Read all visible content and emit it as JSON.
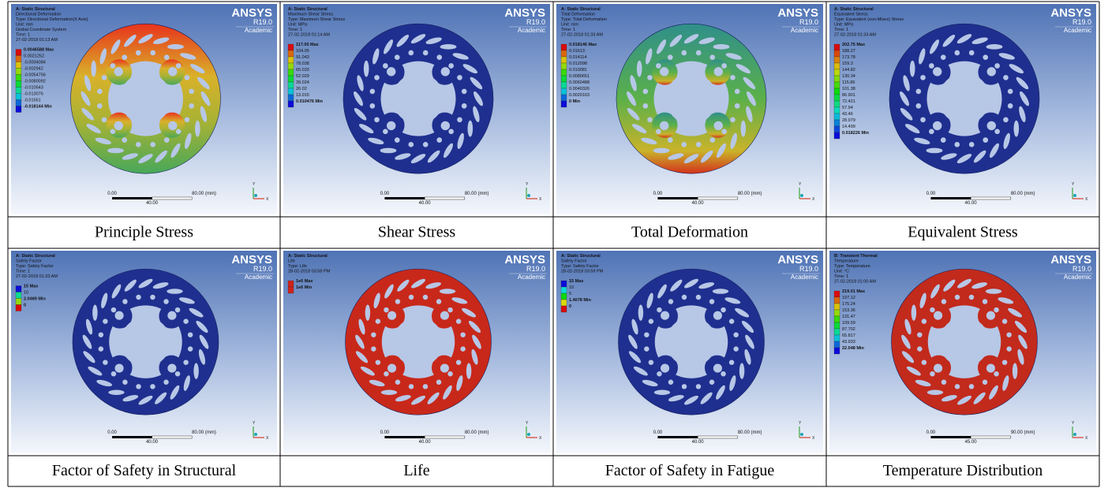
{
  "panels": [
    {
      "header": [
        "A: Static Structural",
        "Directional Deformation",
        "Type: Directional Deformation(X Axis)",
        "Unit: mm",
        "Global Coordinate System",
        "Time: 1",
        "27-02-2018 01:13 AM"
      ],
      "legend": [
        "0.0046588 Max",
        "0.0021252",
        "-0.0004084",
        "-0.002942",
        "-0.0054756",
        "-0.0080092",
        "-0.010543",
        "-0.013076",
        "-0.01561",
        "-0.018144 Min"
      ],
      "scale": {
        "start": "0.00",
        "end": "80.00 (mm)",
        "mid": "40.00"
      },
      "caption": "Principle Stress"
    },
    {
      "header": [
        "A: Static Structural",
        "Maximum Shear Stress",
        "Type: Maximum Shear Stress",
        "Unit: MPa",
        "Time: 1",
        "27-02-2018 01:14 AM"
      ],
      "legend": [
        "117.05 Max",
        "104.05",
        "91.043",
        "78.038",
        "65.033",
        "52.029",
        "39.024",
        "26.02",
        "13.015",
        "0.010476 Min"
      ],
      "scale": {
        "start": "0.00",
        "end": "80.00 (mm)",
        "mid": "40.00"
      },
      "caption": "Shear Stress"
    },
    {
      "header": [
        "A: Static Structural",
        "Total Deformation",
        "Type: Total Deformation",
        "Unit: mm",
        "Time: 1",
        "27-02-2018 01:33 AM"
      ],
      "legend": [
        "0.018146 Max",
        "0.01613",
        "0.014114",
        "0.012098",
        "0.010081",
        "0.0080651",
        "0.0060488",
        "0.0040326",
        "0.0020163",
        "0 Min"
      ],
      "scale": {
        "start": "0.00",
        "end": "80.00 (mm)",
        "mid": "40.00"
      },
      "caption": "Total Deformation"
    },
    {
      "header": [
        "A: Static Structural",
        "Equivalent Stress",
        "Type: Equivalent (von-Mises) Stress",
        "Unit: MPa",
        "Time: 1",
        "27-02-2018 01:33 AM"
      ],
      "legend": [
        "202.75 Max",
        "188.27",
        "173.78",
        "159.3",
        "144.82",
        "130.34",
        "115.86",
        "101.38",
        "86.901",
        "72.421",
        "57.94",
        "43.46",
        "28.979",
        "14.499",
        "0.018226 Min"
      ],
      "scale": {
        "start": "0.00",
        "end": "80.00 (mm)",
        "mid": "40.00"
      },
      "caption": "Equivalent Stress"
    },
    {
      "header": [
        "A: Static Structural",
        "Safety Factor",
        "Type: Safety Factor",
        "Time: 1",
        "27-02-2018 01:33 AM"
      ],
      "legend": [
        "15 Max",
        "10",
        "2.0469 Min",
        "0"
      ],
      "scale": {
        "start": "0.00",
        "end": "80.00 (mm)",
        "mid": "40.00"
      },
      "caption": "Factor of Safety in Structural"
    },
    {
      "header": [
        "A: Static Structural",
        "Life",
        "Type: Life",
        "28-02-2018 03:58 PM"
      ],
      "legend": [
        "1e6 Max",
        "1e6 Min"
      ],
      "scale": {
        "start": "0.00",
        "end": "80.00 (mm)",
        "mid": "40.00"
      },
      "caption": "Life"
    },
    {
      "header": [
        "A: Static Structural",
        "Safety Factor",
        "Type: Safety Factor",
        "28-02-2018 03:59 PM"
      ],
      "legend": [
        "15 Max",
        "10",
        "5",
        "1.4078 Min",
        "0"
      ],
      "scale": {
        "start": "0.00",
        "end": "80.00 (mm)",
        "mid": "40.00"
      },
      "caption": "Factor of Safety in Fatigue"
    },
    {
      "header": [
        "B: Transient Thermal",
        "Temperature",
        "Type: Temperature",
        "Unit: °C",
        "Time: 1",
        "27-02-2018 01:00 AM"
      ],
      "legend": [
        "219.01 Max",
        "197.12",
        "175.24",
        "153.36",
        "131.47",
        "109.59",
        "87.702",
        "65.817",
        "43.933",
        "22.048 Min"
      ],
      "scale": {
        "start": "0.00",
        "end": "90.00 (mm)",
        "mid": "45.00"
      },
      "caption": "Temperature Distribution"
    }
  ],
  "logo": {
    "brand": "ANSYS",
    "release": "R19.0",
    "edition": "Academic"
  },
  "triad": {
    "y": "Y",
    "x": "X"
  }
}
